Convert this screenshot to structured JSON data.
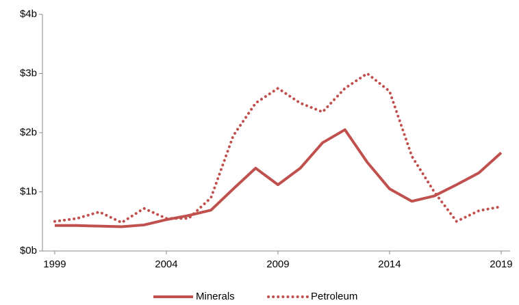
{
  "chart_data": {
    "type": "line",
    "x": [
      1999,
      2000,
      2001,
      2002,
      2003,
      2004,
      2005,
      2006,
      2007,
      2008,
      2009,
      2010,
      2011,
      2012,
      2013,
      2014,
      2015,
      2016,
      2017,
      2018,
      2019
    ],
    "series": [
      {
        "name": "Minerals",
        "color": "#c0504d",
        "style": "solid",
        "values": [
          0.43,
          0.43,
          0.42,
          0.41,
          0.44,
          0.53,
          0.6,
          0.69,
          1.05,
          1.4,
          1.12,
          1.4,
          1.83,
          2.05,
          1.5,
          1.05,
          0.84,
          0.93,
          1.12,
          1.32,
          1.66
        ]
      },
      {
        "name": "Petroleum",
        "color": "#c0504d",
        "style": "dotted",
        "values": [
          0.5,
          0.55,
          0.66,
          0.48,
          0.72,
          0.55,
          0.55,
          0.9,
          1.95,
          2.5,
          2.75,
          2.5,
          2.35,
          2.75,
          3.0,
          2.7,
          1.6,
          1.0,
          0.5,
          0.68,
          0.75
        ]
      }
    ],
    "xlim": [
      1998.45,
      2019.4
    ],
    "xticks": [
      1999,
      2004,
      2009,
      2014,
      2019
    ],
    "ylim": [
      0,
      4
    ],
    "yticks": [
      {
        "value": 0,
        "label": "$0b"
      },
      {
        "value": 1,
        "label": "$1b"
      },
      {
        "value": 2,
        "label": "$2b"
      },
      {
        "value": 3,
        "label": "$3b"
      },
      {
        "value": 4,
        "label": "$4b"
      }
    ],
    "grid": false,
    "legend": "bottom"
  }
}
